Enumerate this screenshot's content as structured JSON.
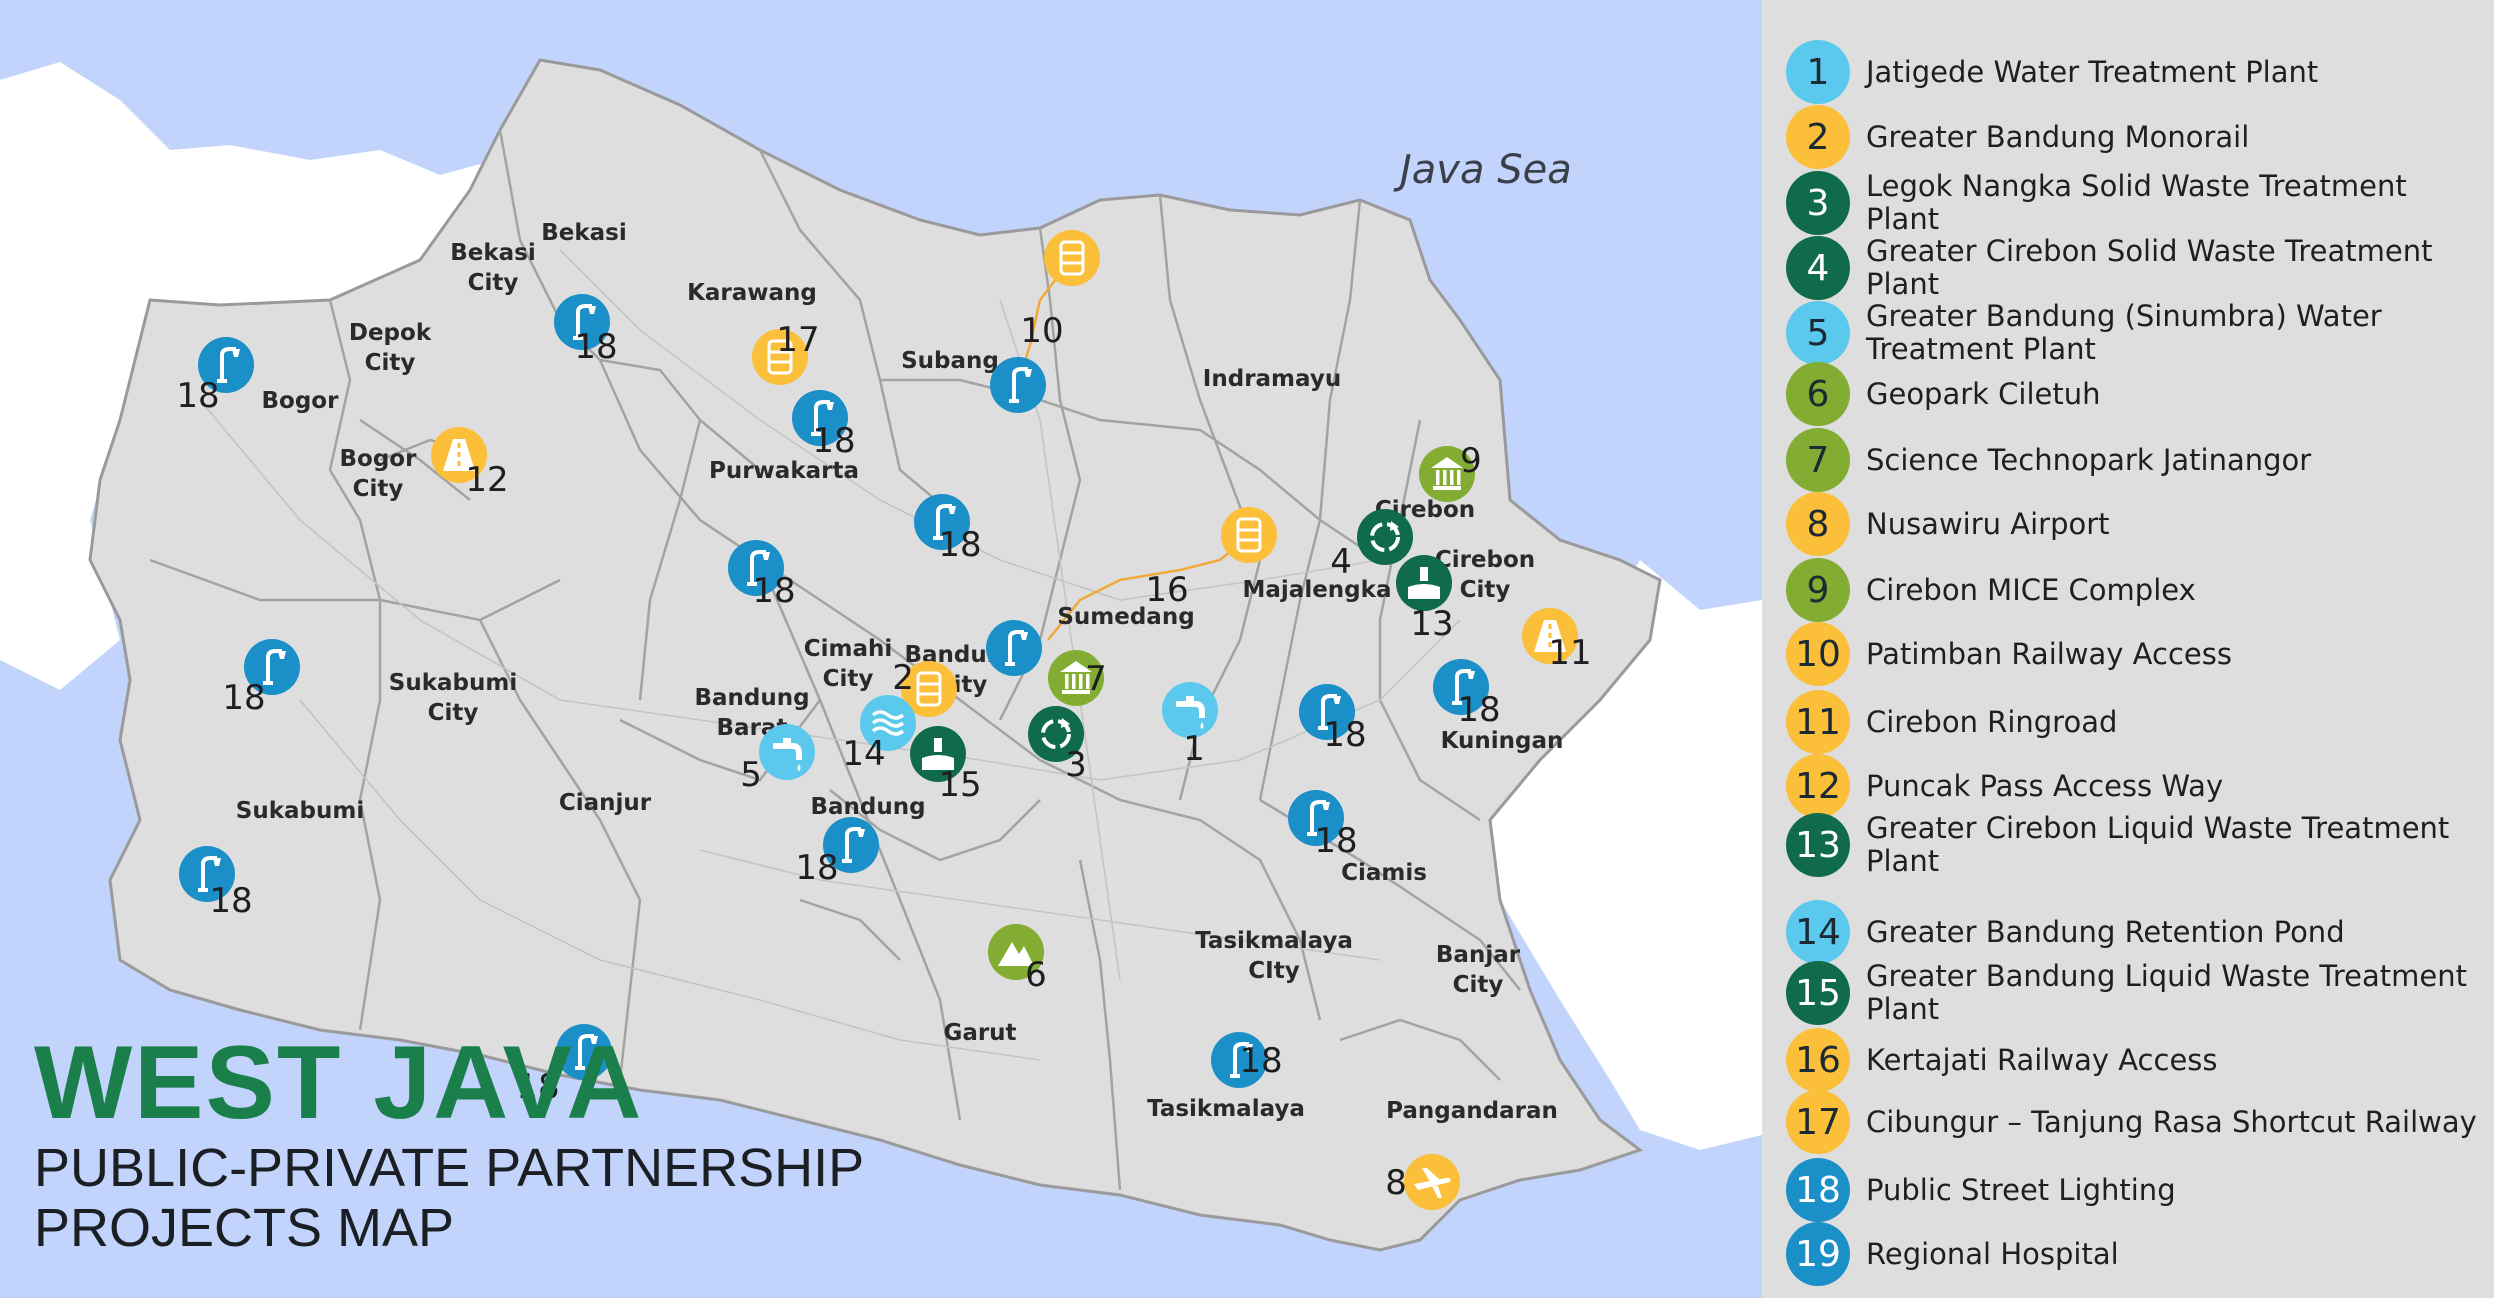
{
  "title": {
    "main": "WEST JAVA",
    "line1": "PUBLIC-PRIVATE PARTNERSHIP",
    "line2": "PROJECTS MAP"
  },
  "sea_label": "Java Sea",
  "colors": {
    "light_blue": "#5bc9ee",
    "yellow": "#fbbf3a",
    "dark_green": "#0f6b49",
    "lime_green": "#82ad32",
    "blue": "#1b8fc8",
    "land": "#dedede",
    "sea": "#c2d4fb",
    "title_green": "#1b7f4c"
  },
  "legend": [
    {
      "num": "1",
      "label": "Jatigede Water Treatment Plant",
      "color": "#5bc9ee"
    },
    {
      "num": "2",
      "label": "Greater Bandung Monorail",
      "color": "#fbbf3a"
    },
    {
      "num": "3",
      "label": "Legok Nangka Solid Waste Treatment Plant",
      "color": "#0f6b49"
    },
    {
      "num": "4",
      "label": "Greater Cirebon Solid Waste Treatment Plant",
      "color": "#0f6b49"
    },
    {
      "num": "5",
      "label": "Greater Bandung (Sinumbra) Water Treatment Plant",
      "color": "#5bc9ee"
    },
    {
      "num": "6",
      "label": "Geopark Ciletuh",
      "color": "#82ad32"
    },
    {
      "num": "7",
      "label": "Science Technopark Jatinangor",
      "color": "#82ad32"
    },
    {
      "num": "8",
      "label": "Nusawiru Airport",
      "color": "#fbbf3a"
    },
    {
      "num": "9",
      "label": "Cirebon MICE Complex",
      "color": "#82ad32"
    },
    {
      "num": "10",
      "label": "Patimban Railway Access",
      "color": "#fbbf3a"
    },
    {
      "num": "11",
      "label": "Cirebon Ringroad",
      "color": "#fbbf3a"
    },
    {
      "num": "12",
      "label": "Puncak Pass Access Way",
      "color": "#fbbf3a"
    },
    {
      "num": "13",
      "label": "Greater Cirebon Liquid Waste Treatment Plant",
      "color": "#0f6b49"
    },
    {
      "num": "14",
      "label": "Greater Bandung Retention Pond",
      "color": "#5bc9ee"
    },
    {
      "num": "15",
      "label": "Greater Bandung Liquid Waste Treatment Plant",
      "color": "#0f6b49"
    },
    {
      "num": "16",
      "label": "Kertajati Railway Access",
      "color": "#fbbf3a"
    },
    {
      "num": "17",
      "label": "Cibungur – Tanjung Rasa Shortcut Railway",
      "color": "#fbbf3a"
    },
    {
      "num": "18",
      "label": "Public Street Lighting",
      "color": "#1b8fc8"
    },
    {
      "num": "19",
      "label": "Regional Hospital",
      "color": "#1b8fc8"
    }
  ],
  "regions": [
    "Bekasi",
    "Bekasi City",
    "Depok City",
    "Bogor",
    "Bogor City",
    "Karawang",
    "Subang",
    "Purwakarta",
    "Indramayu",
    "Cirebon",
    "Cirebon City",
    "Majalengka",
    "Sumedang",
    "Cimahi City",
    "Bandung City",
    "Bandung Barat",
    "Sukabumi City",
    "Sukabumi",
    "Cianjur",
    "Bandung",
    "Kuningan",
    "Ciamis",
    "Tasikmalaya CIty",
    "Banjar City",
    "Garut",
    "Tasikmalaya",
    "Pangandaran"
  ],
  "markers": [
    {
      "project": "18",
      "icon": "street-light-icon",
      "color": "#1b8fc8"
    },
    {
      "project": "18",
      "icon": "street-light-icon",
      "color": "#1b8fc8"
    },
    {
      "project": "12",
      "icon": "road-icon",
      "color": "#fbbf3a"
    },
    {
      "project": "17",
      "icon": "railway-icon",
      "color": "#fbbf3a"
    },
    {
      "project": "10",
      "icon": "railway-icon",
      "color": "#fbbf3a"
    },
    {
      "project": "18",
      "icon": "street-light-icon",
      "color": "#1b8fc8"
    },
    {
      "project": "18",
      "icon": "street-light-icon",
      "color": "#1b8fc8"
    },
    {
      "project": "18",
      "icon": "street-light-icon",
      "color": "#1b8fc8"
    },
    {
      "project": "18",
      "icon": "street-light-icon",
      "color": "#1b8fc8"
    },
    {
      "project": "9",
      "icon": "building-icon",
      "color": "#82ad32"
    },
    {
      "project": "16",
      "icon": "railway-icon",
      "color": "#fbbf3a"
    },
    {
      "project": "4",
      "icon": "recycle-icon",
      "color": "#0f6b49"
    },
    {
      "project": "13",
      "icon": "treatment-icon",
      "color": "#0f6b49"
    },
    {
      "project": "11",
      "icon": "road-icon",
      "color": "#fbbf3a"
    },
    {
      "project": "18",
      "icon": "street-light-icon",
      "color": "#1b8fc8"
    },
    {
      "project": "2",
      "icon": "monorail-icon",
      "color": "#fbbf3a"
    },
    {
      "project": "7",
      "icon": "building-icon",
      "color": "#82ad32"
    },
    {
      "project": "14",
      "icon": "waves-icon",
      "color": "#5bc9ee"
    },
    {
      "project": "5",
      "icon": "faucet-icon",
      "color": "#5bc9ee"
    },
    {
      "project": "15",
      "icon": "treatment-icon",
      "color": "#0f6b49"
    },
    {
      "project": "3",
      "icon": "recycle-icon",
      "color": "#0f6b49"
    },
    {
      "project": "1",
      "icon": "faucet-icon",
      "color": "#5bc9ee"
    },
    {
      "project": "18",
      "icon": "street-light-icon",
      "color": "#1b8fc8"
    },
    {
      "project": "18",
      "icon": "street-light-icon",
      "color": "#1b8fc8"
    },
    {
      "project": "18",
      "icon": "street-light-icon",
      "color": "#1b8fc8"
    },
    {
      "project": "18",
      "icon": "street-light-icon",
      "color": "#1b8fc8"
    },
    {
      "project": "18",
      "icon": "street-light-icon",
      "color": "#1b8fc8"
    },
    {
      "project": "6",
      "icon": "mountain-icon",
      "color": "#82ad32"
    },
    {
      "project": "18",
      "icon": "street-light-icon",
      "color": "#1b8fc8"
    },
    {
      "project": "18",
      "icon": "street-light-icon",
      "color": "#1b8fc8"
    },
    {
      "project": "18",
      "icon": "street-light-icon",
      "color": "#1b8fc8"
    },
    {
      "project": "8",
      "icon": "airplane-icon",
      "color": "#fbbf3a"
    }
  ]
}
